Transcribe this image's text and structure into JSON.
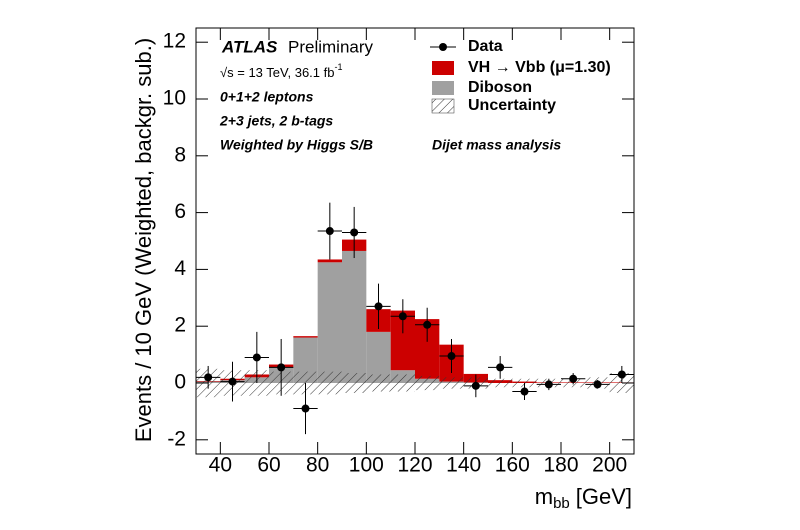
{
  "chart_data": {
    "type": "histogram",
    "experiment": "ATLAS",
    "status": "Preliminary",
    "energy_label": "√s = 13 TeV, 36.1 fb",
    "energy_label_sup": "-1",
    "notes": [
      "0+1+2 leptons",
      "2+3 jets, 2 b-tags",
      "Weighted by Higgs S/B"
    ],
    "analysis": "Dijet mass analysis",
    "y_label": "Events / 10 GeV (Weighted, backgr. sub.)",
    "x_label": {
      "main": "m",
      "sub": "bb",
      "unit": "[GeV]"
    },
    "bins": [
      30,
      40,
      50,
      60,
      70,
      80,
      90,
      100,
      110,
      120,
      130,
      140,
      150,
      160,
      170,
      180,
      190,
      200,
      210
    ],
    "series": [
      {
        "name": "Diboson",
        "color": "#a0a0a0",
        "values": [
          0.05,
          0.1,
          0.2,
          0.55,
          1.6,
          4.25,
          4.65,
          1.8,
          0.45,
          0.15,
          0.05,
          0.02,
          0,
          0,
          0,
          0,
          0,
          0
        ]
      },
      {
        "name": "VH → Vbb (μ=1.30)",
        "color": "#cc0000",
        "values": [
          0.02,
          0.05,
          0.1,
          0.1,
          0.05,
          0.1,
          0.4,
          0.8,
          2.1,
          2.1,
          1.3,
          0.3,
          0.1,
          0.05,
          0.02,
          0.02,
          0.02,
          0.02
        ]
      }
    ],
    "data": {
      "name": "Data",
      "color": "#000000",
      "x": [
        35,
        45,
        55,
        65,
        75,
        85,
        95,
        105,
        115,
        125,
        135,
        145,
        155,
        165,
        175,
        185,
        195,
        205
      ],
      "values": [
        0.2,
        0.05,
        0.9,
        0.55,
        -0.9,
        5.35,
        5.3,
        2.7,
        2.35,
        2.05,
        0.95,
        -0.1,
        0.55,
        -0.3,
        -0.05,
        0.15,
        -0.05,
        0.3
      ],
      "errors": [
        0.4,
        0.7,
        0.9,
        1.0,
        0.9,
        1.0,
        0.9,
        0.8,
        0.6,
        0.6,
        0.6,
        0.4,
        0.4,
        0.3,
        0.2,
        0.2,
        0.15,
        0.3
      ]
    },
    "uncertainty": {
      "name": "Uncertainty",
      "values": [
        0.5,
        0.45,
        0.45,
        0.4,
        0.4,
        0.4,
        0.35,
        0.3,
        0.3,
        0.25,
        0.2,
        0.2,
        0.15,
        0.15,
        0.15,
        0.15,
        0.2,
        0.35
      ]
    },
    "xlim": [
      30,
      210
    ],
    "ylim": [
      -2.5,
      12.5
    ],
    "xticks": [
      40,
      60,
      80,
      100,
      120,
      140,
      160,
      180,
      200
    ],
    "yticks": [
      -2,
      0,
      2,
      4,
      6,
      8,
      10,
      12
    ]
  }
}
